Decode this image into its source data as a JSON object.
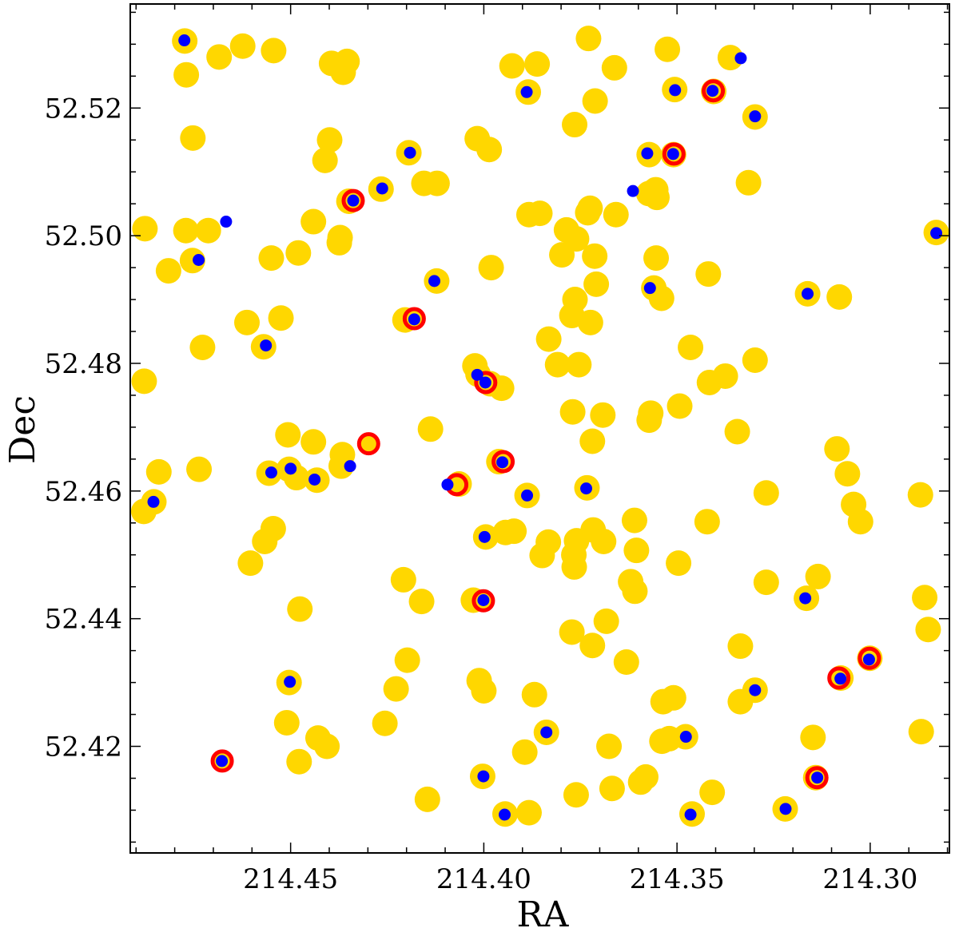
{
  "chart_data": {
    "type": "scatter",
    "xlabel": "RA",
    "ylabel": "Dec",
    "x_inverted": true,
    "xlim": [
      214.4915,
      214.2795
    ],
    "ylim": [
      52.4033,
      52.5363
    ],
    "xticks": [
      "214.45",
      "214.40",
      "214.35",
      "214.30"
    ],
    "yticks": [
      "52.42",
      "52.44",
      "52.46",
      "52.48",
      "52.50",
      "52.52"
    ],
    "colors": {
      "yellow": "#FFD700",
      "blue": "#0000FF",
      "red": "#FF0000"
    },
    "series": [
      {
        "marker": "yellow-large-circle",
        "points": [
          [
            214.4774,
            52.5305
          ],
          [
            214.477,
            52.5252
          ],
          [
            214.4685,
            52.528
          ],
          [
            214.4624,
            52.5297
          ],
          [
            214.4544,
            52.529
          ],
          [
            214.4753,
            52.5153
          ],
          [
            214.4394,
            52.527
          ],
          [
            214.4354,
            52.5273
          ],
          [
            214.4364,
            52.5256
          ],
          [
            214.4399,
            52.515
          ],
          [
            214.4411,
            52.5118
          ],
          [
            214.4441,
            52.5022
          ],
          [
            214.4349,
            52.5054
          ],
          [
            214.4372,
            52.4997
          ],
          [
            214.4374,
            52.4989
          ],
          [
            214.4877,
            52.5011
          ],
          [
            214.4771,
            52.5008
          ],
          [
            214.4713,
            52.5008
          ],
          [
            214.4754,
            52.4961
          ],
          [
            214.4816,
            52.4945
          ],
          [
            214.448,
            52.4973
          ],
          [
            214.455,
            52.4965
          ],
          [
            214.4613,
            52.4864
          ],
          [
            214.4525,
            52.4871
          ],
          [
            214.457,
            52.4826
          ],
          [
            214.4728,
            52.4825
          ],
          [
            214.4879,
            52.4772
          ],
          [
            214.4841,
            52.463
          ],
          [
            214.4737,
            52.4634
          ],
          [
            214.488,
            52.4568
          ],
          [
            214.4854,
            52.4583
          ],
          [
            214.4507,
            52.4688
          ],
          [
            214.4441,
            52.4677
          ],
          [
            214.4366,
            52.4657
          ],
          [
            214.4556,
            52.4628
          ],
          [
            214.4504,
            52.4634
          ],
          [
            214.4485,
            52.4621
          ],
          [
            214.4432,
            52.4617
          ],
          [
            214.4369,
            52.4639
          ],
          [
            214.4545,
            52.4541
          ],
          [
            214.4567,
            52.4521
          ],
          [
            214.4604,
            52.4487
          ],
          [
            214.4476,
            52.4415
          ],
          [
            214.4504,
            52.43
          ],
          [
            214.451,
            52.4237
          ],
          [
            214.4429,
            52.4213
          ],
          [
            214.4406,
            52.42
          ],
          [
            214.4478,
            52.4176
          ],
          [
            214.4227,
            52.429
          ],
          [
            214.4194,
            52.513
          ],
          [
            214.4155,
            52.5082
          ],
          [
            214.4121,
            52.5082
          ],
          [
            214.4266,
            52.5073
          ],
          [
            214.4122,
            52.4929
          ],
          [
            214.4204,
            52.4868
          ],
          [
            214.4017,
            52.5152
          ],
          [
            214.3986,
            52.5135
          ],
          [
            214.3981,
            52.495
          ],
          [
            214.4023,
            52.4796
          ],
          [
            214.4015,
            52.4783
          ],
          [
            214.3983,
            52.4768
          ],
          [
            214.3954,
            52.4761
          ],
          [
            214.4138,
            52.4697
          ],
          [
            214.4064,
            52.4611
          ],
          [
            214.3961,
            52.4646
          ],
          [
            214.3888,
            52.4593
          ],
          [
            214.3995,
            52.4528
          ],
          [
            214.3944,
            52.4535
          ],
          [
            214.3922,
            52.4537
          ],
          [
            214.3833,
            52.452
          ],
          [
            214.3849,
            52.4499
          ],
          [
            214.4208,
            52.4461
          ],
          [
            214.4161,
            52.4427
          ],
          [
            214.4027,
            52.4429
          ],
          [
            214.4198,
            52.4335
          ],
          [
            214.4012,
            52.4303
          ],
          [
            214.4,
            52.4287
          ],
          [
            214.3869,
            52.4281
          ],
          [
            214.4256,
            52.4236
          ],
          [
            214.3894,
            52.4191
          ],
          [
            214.3838,
            52.4222
          ],
          [
            214.4003,
            52.4153
          ],
          [
            214.4146,
            52.4117
          ],
          [
            214.3945,
            52.4094
          ],
          [
            214.3883,
            52.4096
          ],
          [
            214.3927,
            52.5266
          ],
          [
            214.3862,
            52.5269
          ],
          [
            214.3885,
            52.5225
          ],
          [
            214.3729,
            52.5309
          ],
          [
            214.3662,
            52.5263
          ],
          [
            214.3712,
            52.5211
          ],
          [
            214.3765,
            52.5174
          ],
          [
            214.3725,
            52.5043
          ],
          [
            214.3731,
            52.5036
          ],
          [
            214.3658,
            52.5033
          ],
          [
            214.3883,
            52.5033
          ],
          [
            214.3855,
            52.5035
          ],
          [
            214.3786,
            52.5009
          ],
          [
            214.376,
            52.4995
          ],
          [
            214.3798,
            52.497
          ],
          [
            214.3713,
            52.4968
          ],
          [
            214.3709,
            52.4924
          ],
          [
            214.3764,
            52.49
          ],
          [
            214.3772,
            52.4875
          ],
          [
            214.3724,
            52.4864
          ],
          [
            214.3832,
            52.4838
          ],
          [
            214.3809,
            52.4798
          ],
          [
            214.3754,
            52.4798
          ],
          [
            214.377,
            52.4724
          ],
          [
            214.3692,
            52.4719
          ],
          [
            214.3719,
            52.4678
          ],
          [
            214.3733,
            52.4605
          ],
          [
            214.3717,
            52.4539
          ],
          [
            214.376,
            52.4522
          ],
          [
            214.369,
            52.4521
          ],
          [
            214.3767,
            52.45
          ],
          [
            214.3766,
            52.4481
          ],
          [
            214.361,
            52.4554
          ],
          [
            214.362,
            52.4458
          ],
          [
            214.3609,
            52.4443
          ],
          [
            214.3772,
            52.4379
          ],
          [
            214.3683,
            52.4396
          ],
          [
            214.3719,
            52.4358
          ],
          [
            214.3631,
            52.4332
          ],
          [
            214.3676,
            52.42
          ],
          [
            214.3761,
            52.4124
          ],
          [
            214.3668,
            52.4134
          ],
          [
            214.3581,
            52.4152
          ],
          [
            214.3594,
            52.4144
          ],
          [
            214.3605,
            52.4507
          ],
          [
            214.3572,
            52.5127
          ],
          [
            214.3555,
            52.5072
          ],
          [
            214.3573,
            52.5066
          ],
          [
            214.3552,
            52.506
          ],
          [
            214.3509,
            52.5127
          ],
          [
            214.3506,
            52.5229
          ],
          [
            214.3525,
            52.5292
          ],
          [
            214.3554,
            52.4965
          ],
          [
            214.356,
            52.4918
          ],
          [
            214.354,
            52.4902
          ],
          [
            214.3568,
            52.4722
          ],
          [
            214.3572,
            52.4711
          ],
          [
            214.3493,
            52.4733
          ],
          [
            214.3465,
            52.4825
          ],
          [
            214.3419,
            52.494
          ],
          [
            214.3405,
            52.5226
          ],
          [
            214.3362,
            52.5279
          ],
          [
            214.3298,
            52.5186
          ],
          [
            214.3315,
            52.5083
          ],
          [
            214.3416,
            52.477
          ],
          [
            214.3375,
            52.478
          ],
          [
            214.3298,
            52.4805
          ],
          [
            214.3344,
            52.4693
          ],
          [
            214.3422,
            52.4552
          ],
          [
            214.3496,
            52.4487
          ],
          [
            214.3269,
            52.4597
          ],
          [
            214.3269,
            52.4457
          ],
          [
            214.3336,
            52.4357
          ],
          [
            214.3536,
            52.427
          ],
          [
            214.3509,
            52.4276
          ],
          [
            214.3298,
            52.4288
          ],
          [
            214.3336,
            52.427
          ],
          [
            214.3478,
            52.4215
          ],
          [
            214.352,
            52.4212
          ],
          [
            214.3539,
            52.4208
          ],
          [
            214.3409,
            52.4128
          ],
          [
            214.3461,
            52.4094
          ],
          [
            214.322,
            52.4102
          ],
          [
            214.3162,
            52.4909
          ],
          [
            214.308,
            52.4904
          ],
          [
            214.3086,
            52.4666
          ],
          [
            214.3059,
            52.4627
          ],
          [
            214.3043,
            52.4579
          ],
          [
            214.3025,
            52.4552
          ],
          [
            214.3135,
            52.4466
          ],
          [
            214.3165,
            52.4432
          ],
          [
            214.3001,
            52.4338
          ],
          [
            214.3076,
            52.4307
          ],
          [
            214.3148,
            52.4214
          ],
          [
            214.3141,
            52.4151
          ],
          [
            214.287,
            52.4594
          ],
          [
            214.2859,
            52.4433
          ],
          [
            214.285,
            52.4383
          ],
          [
            214.2868,
            52.4223
          ],
          [
            214.2829,
            52.5005
          ]
        ]
      },
      {
        "marker": "red-ring",
        "points": [
          [
            214.4338,
            52.5055
          ],
          [
            214.418,
            52.487
          ],
          [
            214.3995,
            52.477
          ],
          [
            214.395,
            52.4646
          ],
          [
            214.407,
            52.461
          ],
          [
            214.4001,
            52.4428
          ],
          [
            214.4298,
            52.4674
          ],
          [
            214.4677,
            52.4177
          ],
          [
            214.3508,
            52.5128
          ],
          [
            214.3406,
            52.5227
          ],
          [
            214.3081,
            52.4307
          ],
          [
            214.3002,
            52.4338
          ],
          [
            214.3138,
            52.4151
          ]
        ]
      },
      {
        "marker": "blue-dot",
        "points": [
          [
            214.4775,
            52.5306
          ],
          [
            214.3889,
            52.5225
          ],
          [
            214.3505,
            52.5228
          ],
          [
            214.3408,
            52.5227
          ],
          [
            214.3335,
            52.5278
          ],
          [
            214.3298,
            52.5187
          ],
          [
            214.4191,
            52.513
          ],
          [
            214.4338,
            52.5055
          ],
          [
            214.4263,
            52.5074
          ],
          [
            214.3577,
            52.5129
          ],
          [
            214.351,
            52.5128
          ],
          [
            214.3614,
            52.507
          ],
          [
            214.4667,
            52.5022
          ],
          [
            214.4738,
            52.4962
          ],
          [
            214.4128,
            52.4929
          ],
          [
            214.357,
            52.4918
          ],
          [
            214.418,
            52.4869
          ],
          [
            214.4564,
            52.4828
          ],
          [
            214.3162,
            52.4909
          ],
          [
            214.2829,
            52.5004
          ],
          [
            214.4017,
            52.4782
          ],
          [
            214.3996,
            52.477
          ],
          [
            214.4094,
            52.461
          ],
          [
            214.3952,
            52.4645
          ],
          [
            214.455,
            52.4629
          ],
          [
            214.45,
            52.4635
          ],
          [
            214.4438,
            52.4618
          ],
          [
            214.4346,
            52.4639
          ],
          [
            214.3888,
            52.4593
          ],
          [
            214.3735,
            52.4604
          ],
          [
            214.4855,
            52.4583
          ],
          [
            214.3998,
            52.4528
          ],
          [
            214.4001,
            52.4429
          ],
          [
            214.3168,
            52.4432
          ],
          [
            214.4502,
            52.4301
          ],
          [
            214.3298,
            52.4288
          ],
          [
            214.3077,
            52.4306
          ],
          [
            214.3003,
            52.4336
          ],
          [
            214.3838,
            52.4222
          ],
          [
            214.3477,
            52.4215
          ],
          [
            214.4678,
            52.4177
          ],
          [
            214.4001,
            52.4153
          ],
          [
            214.3137,
            52.4151
          ],
          [
            214.3946,
            52.4093
          ],
          [
            214.3465,
            52.4093
          ],
          [
            214.3219,
            52.4102
          ]
        ]
      }
    ]
  }
}
